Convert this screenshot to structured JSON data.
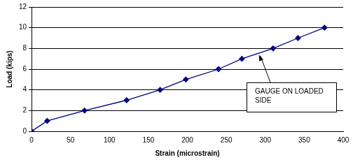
{
  "chart_data": {
    "type": "line",
    "x_label": "Strain (microstrain)",
    "y_label": "Load (kips)",
    "series": [
      {
        "name": "Gauge on loaded side",
        "color": "#000080",
        "marker": "diamond",
        "line_style": "solid",
        "x": [
          0,
          20,
          68,
          122,
          165,
          198,
          240,
          270,
          310,
          342,
          376
        ],
        "values": [
          0,
          1,
          2,
          3,
          4,
          5,
          6,
          7,
          8,
          9,
          10
        ]
      }
    ],
    "annotations": [
      "GAUGE ON LOADED SIDE"
    ],
    "xlim": [
      0,
      400
    ],
    "xticks": [
      0,
      50,
      100,
      150,
      200,
      250,
      300,
      350,
      400
    ],
    "ylim": [
      0,
      12
    ],
    "yticks": [
      0,
      2,
      4,
      6,
      8,
      10,
      12
    ],
    "grid": "y"
  }
}
